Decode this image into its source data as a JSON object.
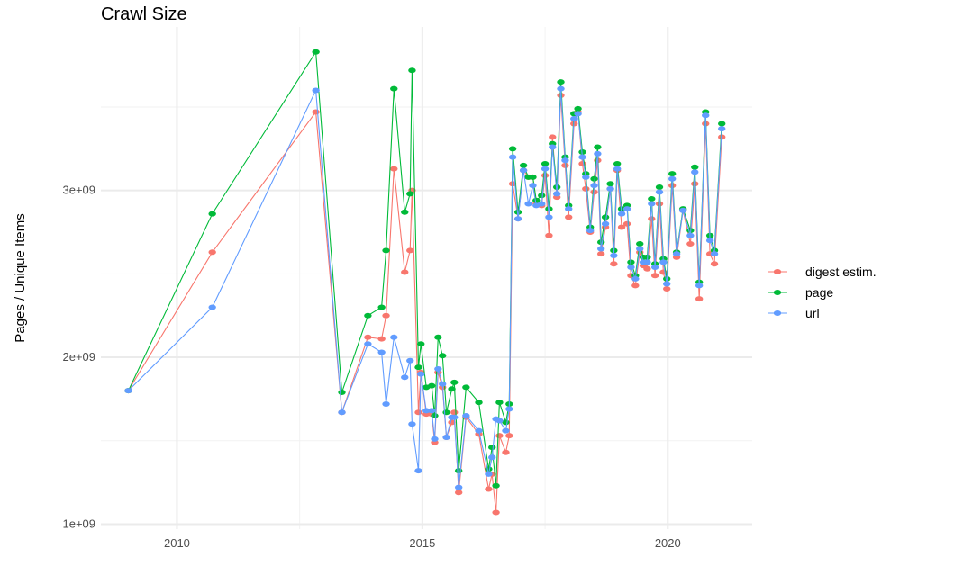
{
  "chart_data": {
    "type": "line",
    "title": "Crawl Size",
    "xlabel": "",
    "ylabel": "Pages / Unique Items",
    "xlim": [
      2008.45,
      2021.72
    ],
    "ylim": [
      970000000.0,
      3980000000.0
    ],
    "x_ticks": [
      2010,
      2015,
      2020
    ],
    "x_tick_labels": [
      "2010",
      "2015",
      "2020"
    ],
    "y_ticks": [
      1000000000.0,
      2000000000.0,
      3000000000.0
    ],
    "y_tick_labels": [
      "1e+09",
      "2e+09",
      "3e+09"
    ],
    "grid": true,
    "legend_position": "right",
    "markers": true,
    "x": [
      2009.01,
      2010.72,
      2012.83,
      2013.36,
      2013.89,
      2014.17,
      2014.26,
      2014.42,
      2014.64,
      2014.75,
      2014.79,
      2014.92,
      2014.97,
      2015.08,
      2015.19,
      2015.25,
      2015.32,
      2015.41,
      2015.49,
      2015.6,
      2015.65,
      2015.74,
      2015.89,
      2016.15,
      2016.35,
      2016.42,
      2016.5,
      2016.57,
      2016.7,
      2016.77,
      2016.84,
      2016.95,
      2017.06,
      2017.16,
      2017.25,
      2017.32,
      2017.43,
      2017.5,
      2017.58,
      2017.65,
      2017.74,
      2017.82,
      2017.91,
      2017.98,
      2018.09,
      2018.17,
      2018.26,
      2018.33,
      2018.42,
      2018.5,
      2018.57,
      2018.64,
      2018.73,
      2018.83,
      2018.9,
      2018.97,
      2019.06,
      2019.17,
      2019.25,
      2019.34,
      2019.43,
      2019.5,
      2019.58,
      2019.67,
      2019.74,
      2019.83,
      2019.91,
      2019.98,
      2020.09,
      2020.18,
      2020.31,
      2020.46,
      2020.55,
      2020.64,
      2020.77,
      2020.86,
      2020.95,
      2021.1
    ],
    "series": [
      {
        "name": "digest estim.",
        "color": "#F8766D",
        "values": [
          1800000000.0,
          2630000000.0,
          3470000000.0,
          1670000000.0,
          2120000000.0,
          2110000000.0,
          2250000000.0,
          3130000000.0,
          2510000000.0,
          2640000000.0,
          3000000000.0,
          1670000000.0,
          1910000000.0,
          1660000000.0,
          1660000000.0,
          1490000000.0,
          1910000000.0,
          1820000000.0,
          1520000000.0,
          1610000000.0,
          1670000000.0,
          1190000000.0,
          1640000000.0,
          1540000000.0,
          1210000000.0,
          1300000000.0,
          1070000000.0,
          1530000000.0,
          1430000000.0,
          1530000000.0,
          3040000000.0,
          2830000000.0,
          3120000000.0,
          3080000000.0,
          3080000000.0,
          2920000000.0,
          2910000000.0,
          3090000000.0,
          2730000000.0,
          3320000000.0,
          2960000000.0,
          3570000000.0,
          3150000000.0,
          2840000000.0,
          3400000000.0,
          3470000000.0,
          3160000000.0,
          3010000000.0,
          2750000000.0,
          2990000000.0,
          3180000000.0,
          2620000000.0,
          2780000000.0,
          3010000000.0,
          2560000000.0,
          3120000000.0,
          2780000000.0,
          2800000000.0,
          2490000000.0,
          2430000000.0,
          2630000000.0,
          2550000000.0,
          2530000000.0,
          2830000000.0,
          2490000000.0,
          2920000000.0,
          2510000000.0,
          2410000000.0,
          3030000000.0,
          2600000000.0,
          2880000000.0,
          2680000000.0,
          3040000000.0,
          2350000000.0,
          3400000000.0,
          2620000000.0,
          2560000000.0,
          3320000000.0
        ]
      },
      {
        "name": "page",
        "color": "#00BA38",
        "values": [
          1800000000.0,
          2860000000.0,
          3830000000.0,
          1790000000.0,
          2250000000.0,
          2300000000.0,
          2640000000.0,
          3610000000.0,
          2870000000.0,
          2980000000.0,
          3720000000.0,
          1940000000.0,
          2080000000.0,
          1820000000.0,
          1830000000.0,
          1650000000.0,
          2120000000.0,
          2010000000.0,
          1670000000.0,
          1810000000.0,
          1850000000.0,
          1320000000.0,
          1820000000.0,
          1730000000.0,
          1330000000.0,
          1460000000.0,
          1230000000.0,
          1730000000.0,
          1610000000.0,
          1720000000.0,
          3250000000.0,
          2870000000.0,
          3150000000.0,
          3080000000.0,
          3080000000.0,
          2940000000.0,
          2970000000.0,
          3160000000.0,
          2890000000.0,
          3280000000.0,
          3020000000.0,
          3650000000.0,
          3200000000.0,
          2910000000.0,
          3460000000.0,
          3490000000.0,
          3230000000.0,
          3100000000.0,
          2780000000.0,
          3070000000.0,
          3260000000.0,
          2690000000.0,
          2840000000.0,
          3040000000.0,
          2640000000.0,
          3160000000.0,
          2890000000.0,
          2910000000.0,
          2570000000.0,
          2490000000.0,
          2680000000.0,
          2600000000.0,
          2600000000.0,
          2950000000.0,
          2560000000.0,
          3020000000.0,
          2590000000.0,
          2470000000.0,
          3100000000.0,
          2630000000.0,
          2890000000.0,
          2760000000.0,
          3140000000.0,
          2450000000.0,
          3470000000.0,
          2730000000.0,
          2640000000.0,
          3400000000.0
        ]
      },
      {
        "name": "url",
        "color": "#619CFF",
        "values": [
          1800000000.0,
          2300000000.0,
          3600000000.0,
          1670000000.0,
          2080000000.0,
          2030000000.0,
          1720000000.0,
          2120000000.0,
          1880000000.0,
          1980000000.0,
          1600000000.0,
          1320000000.0,
          1900000000.0,
          1680000000.0,
          1680000000.0,
          1510000000.0,
          1930000000.0,
          1840000000.0,
          1520000000.0,
          1640000000.0,
          1640000000.0,
          1220000000.0,
          1650000000.0,
          1560000000.0,
          1300000000.0,
          1400000000.0,
          1630000000.0,
          1620000000.0,
          1560000000.0,
          1690000000.0,
          3200000000.0,
          2830000000.0,
          3120000000.0,
          2920000000.0,
          3030000000.0,
          2910000000.0,
          2920000000.0,
          3130000000.0,
          2840000000.0,
          3260000000.0,
          2980000000.0,
          3610000000.0,
          3180000000.0,
          2890000000.0,
          3430000000.0,
          3460000000.0,
          3200000000.0,
          3080000000.0,
          2760000000.0,
          3030000000.0,
          3220000000.0,
          2650000000.0,
          2800000000.0,
          3010000000.0,
          2610000000.0,
          3130000000.0,
          2860000000.0,
          2890000000.0,
          2540000000.0,
          2470000000.0,
          2650000000.0,
          2570000000.0,
          2570000000.0,
          2920000000.0,
          2540000000.0,
          2990000000.0,
          2570000000.0,
          2440000000.0,
          3070000000.0,
          2620000000.0,
          2880000000.0,
          2730000000.0,
          3110000000.0,
          2430000000.0,
          3450000000.0,
          2700000000.0,
          2620000000.0,
          3370000000.0
        ]
      }
    ]
  }
}
